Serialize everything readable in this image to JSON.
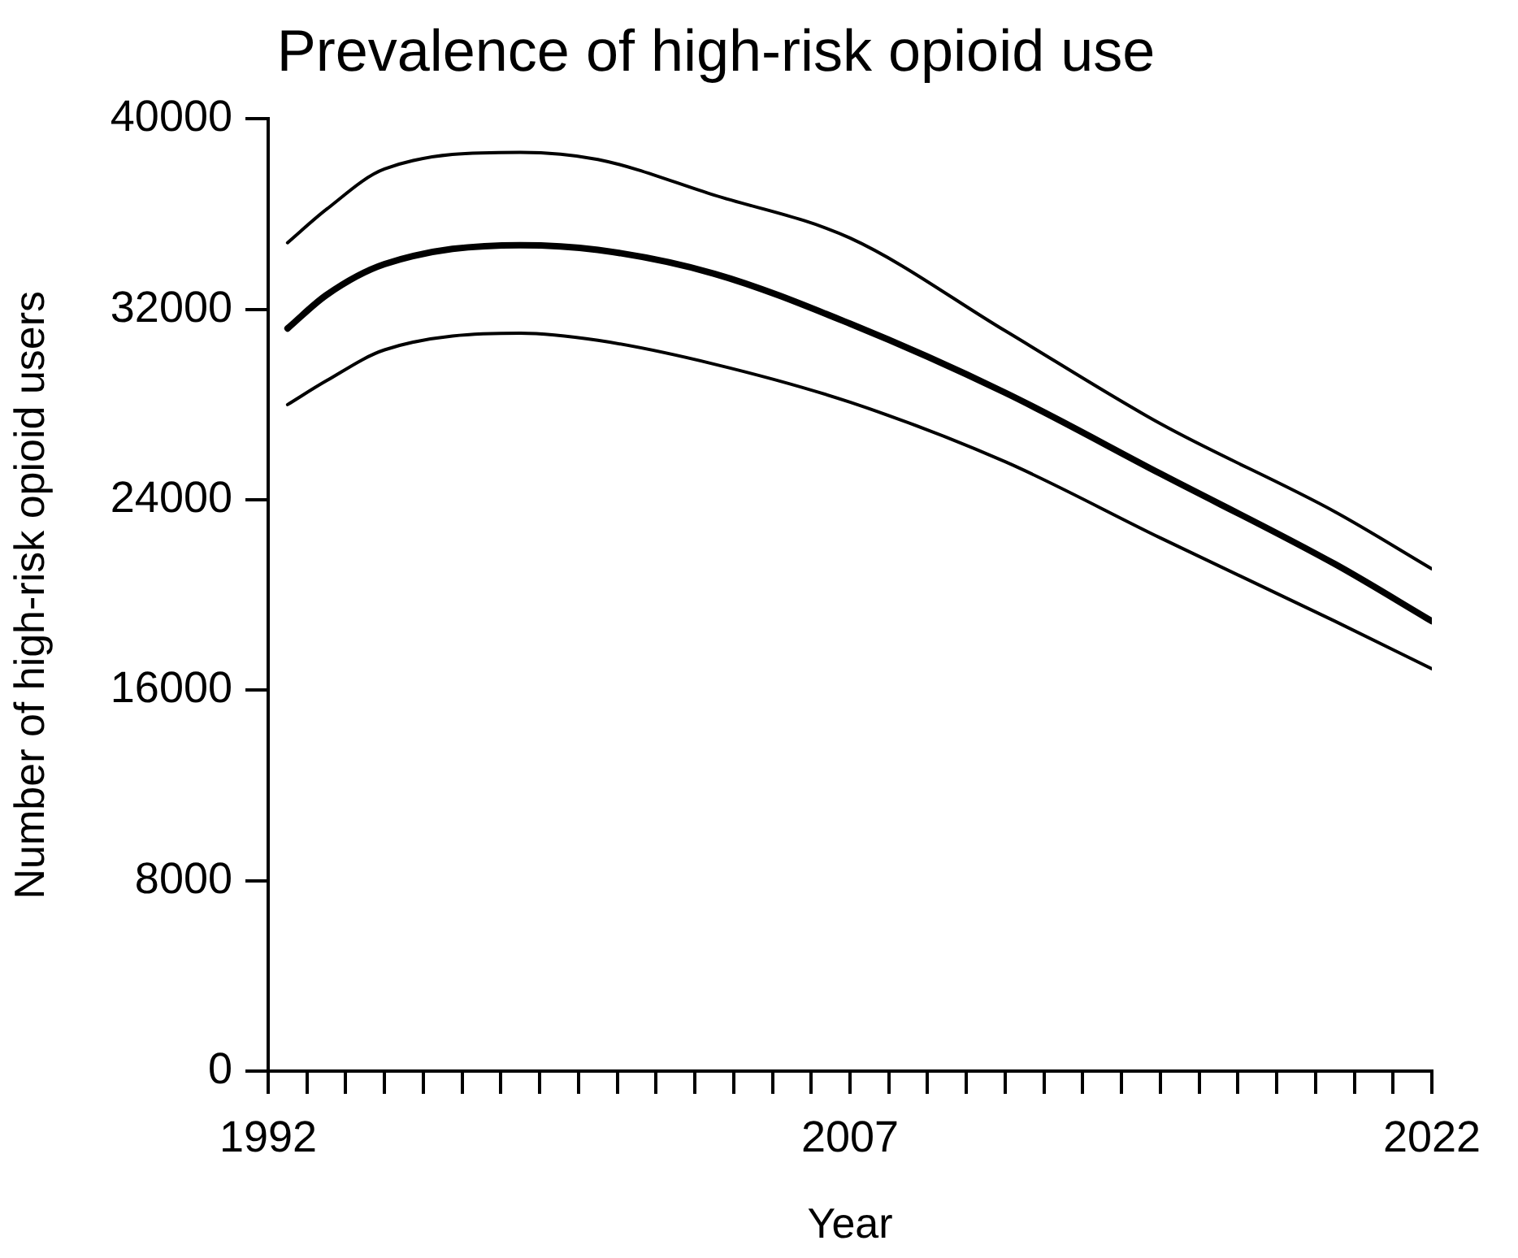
{
  "chart_data": {
    "type": "line",
    "title": "Prevalence of high-risk opioid use",
    "xlabel": "Year",
    "ylabel": "Number of high-risk opioid users",
    "x": [
      1992.5,
      1993.5,
      1995,
      1998.5,
      2000.5,
      2003.5,
      2007,
      2011,
      2015,
      2019.5,
      2022
    ],
    "series": [
      {
        "color": "#000000",
        "values": [
          34800,
          36200,
          37900,
          38600,
          38300,
          36800,
          35000,
          31100,
          27200,
          23500,
          21100
        ]
      },
      {
        "color": "#000000",
        "values": [
          31200,
          32600,
          33900,
          34700,
          34500,
          33500,
          31400,
          28500,
          25100,
          21300,
          18900
        ]
      },
      {
        "color": "#000000",
        "values": [
          28000,
          29000,
          30300,
          31000,
          30700,
          29700,
          28100,
          25600,
          22400,
          18900,
          16900
        ]
      }
    ],
    "xlim": [
      1992,
      2022
    ],
    "xticks": [
      1992,
      {
        "value": 1993,
        "label": null
      },
      {
        "value": 1994,
        "label": null
      },
      {
        "value": 1995,
        "label": null
      },
      {
        "value": 1996,
        "label": null
      },
      {
        "value": 1997,
        "label": null
      },
      {
        "value": 1998,
        "label": null
      },
      {
        "value": 1999,
        "label": null
      },
      {
        "value": 2000,
        "label": null
      },
      {
        "value": 2001,
        "label": null
      },
      {
        "value": 2002,
        "label": null
      },
      {
        "value": 2003,
        "label": null
      },
      {
        "value": 2004,
        "label": null
      },
      {
        "value": 2005,
        "label": null
      },
      {
        "value": 2006,
        "label": null
      },
      2007,
      {
        "value": 2008,
        "label": null
      },
      {
        "value": 2009,
        "label": null
      },
      {
        "value": 2010,
        "label": null
      },
      {
        "value": 2011,
        "label": null
      },
      {
        "value": 2012,
        "label": null
      },
      {
        "value": 2013,
        "label": null
      },
      {
        "value": 2014,
        "label": null
      },
      {
        "value": 2015,
        "label": null
      },
      {
        "value": 2016,
        "label": null
      },
      {
        "value": 2017,
        "label": null
      },
      {
        "value": 2018,
        "label": null
      },
      {
        "value": 2019,
        "label": null
      },
      {
        "value": 2020,
        "label": null
      },
      {
        "value": 2021,
        "label": null
      },
      2022
    ],
    "ylim": [
      0,
      40000
    ],
    "yticks": [
      0,
      8000,
      16000,
      24000,
      32000,
      40000
    ],
    "grid": false,
    "legend": false,
    "marker": "none",
    "line_style": "solid"
  }
}
